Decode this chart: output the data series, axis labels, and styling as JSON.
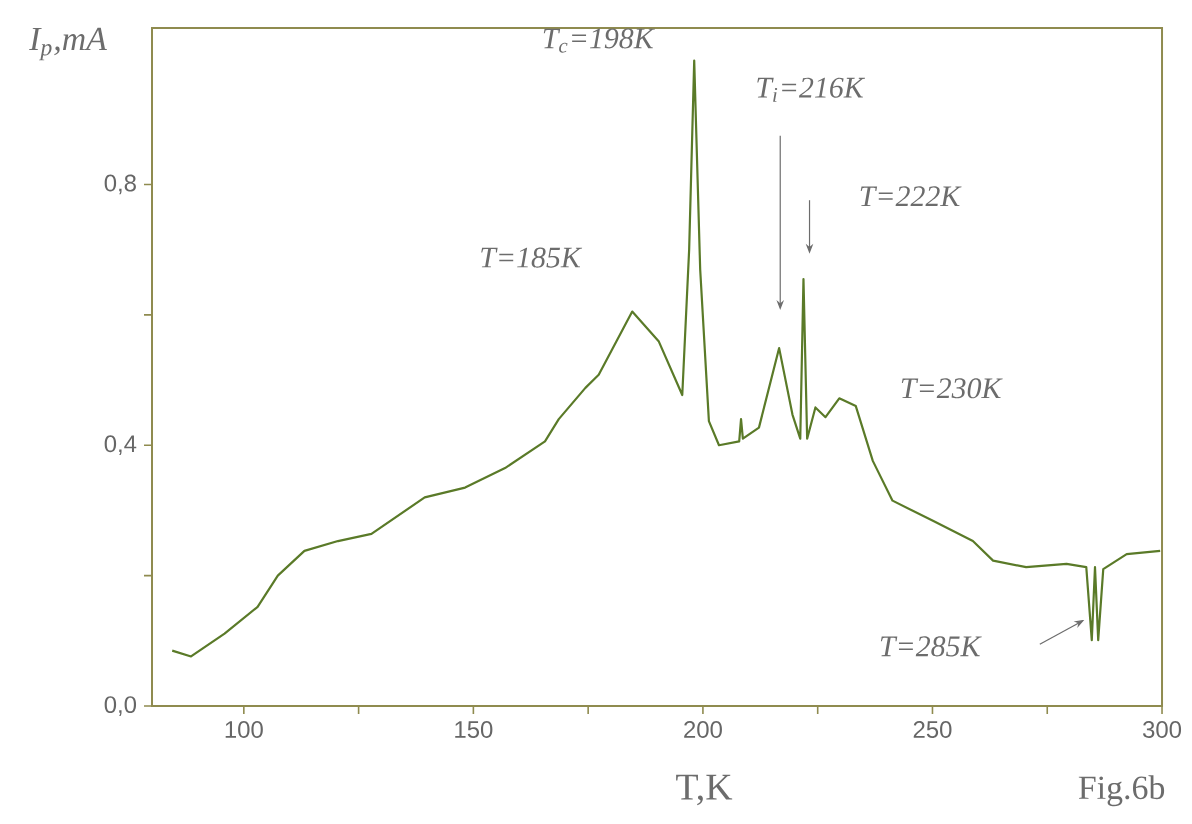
{
  "chart_data": {
    "type": "line",
    "xlabel": "T,K",
    "ylabel": "I$_{p}$,mA",
    "xlim": [
      80,
      300
    ],
    "ylim": [
      0,
      1.04
    ],
    "xticks": [
      100,
      {
        "value": 125,
        "label": null
      },
      150,
      {
        "value": 175,
        "label": null
      },
      200,
      {
        "value": 225,
        "label": null
      },
      250,
      {
        "value": 275,
        "label": null
      },
      300
    ],
    "yticks": [
      {
        "value": 0,
        "label": "0,0"
      },
      {
        "value": 0.2,
        "label": null
      },
      {
        "value": 0.4,
        "label": "0,4"
      },
      {
        "value": 0.6,
        "label": null
      },
      {
        "value": 0.8,
        "label": "0,8"
      }
    ],
    "grid": false,
    "marker": "none",
    "line_style": "solid",
    "series": [
      {
        "color": "#5a7a28",
        "x": [
          84.4,
          88.5,
          95.8,
          103,
          107.4,
          113.2,
          120.5,
          127.8,
          139.4,
          148.2,
          156.9,
          165.6,
          168.6,
          174.4,
          177.3,
          184.6,
          190.4,
          195.5,
          197,
          198.1,
          199.4,
          201.3,
          203.5,
          207.9,
          208.3,
          208.7,
          212.2,
          216.6,
          219.5,
          221.2,
          221.9,
          222.7,
          224.5,
          226.7,
          229.7,
          233.3,
          237,
          241.3,
          250.1,
          258.8,
          263.2,
          270.4,
          279.2,
          283.5,
          284.7,
          285.4,
          286.1,
          287.2,
          292.3,
          299.6
        ],
        "values": [
          0.085,
          0.076,
          0.111,
          0.152,
          0.2,
          0.238,
          0.253,
          0.264,
          0.32,
          0.335,
          0.365,
          0.406,
          0.44,
          0.488,
          0.508,
          0.605,
          0.559,
          0.477,
          0.7,
          0.99,
          0.67,
          0.437,
          0.4,
          0.406,
          0.44,
          0.41,
          0.427,
          0.549,
          0.447,
          0.41,
          0.655,
          0.41,
          0.458,
          0.443,
          0.472,
          0.46,
          0.376,
          0.315,
          0.284,
          0.253,
          0.223,
          0.213,
          0.218,
          0.213,
          0.101,
          0.213,
          0.101,
          0.21,
          0.233,
          0.238
        ]
      }
    ],
    "annotations": [
      {
        "text": "T$_{c}$=198K",
        "x": 198,
        "y": 0.99
      },
      {
        "text": "T=185K",
        "x": 185,
        "y": 0.605
      },
      {
        "text": "T=230K",
        "x": 230,
        "y": 0.472
      },
      "T$_{i}$=216K",
      "T=222K",
      "T=285K",
      "Fig.6b"
    ]
  }
}
